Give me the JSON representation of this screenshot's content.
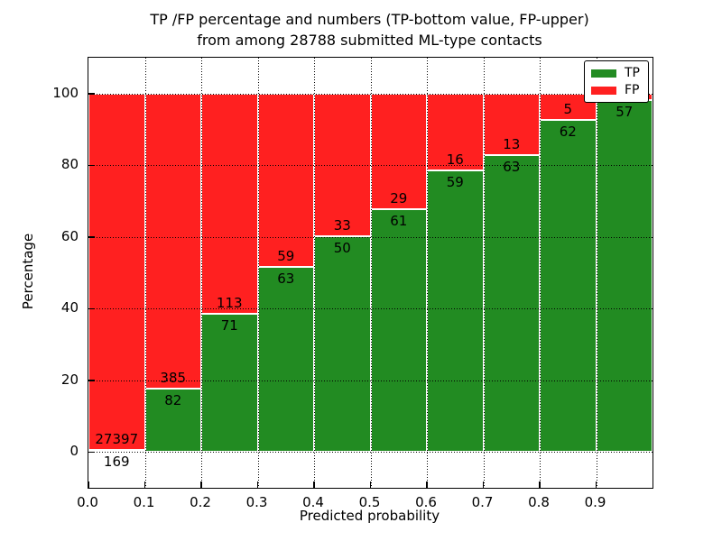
{
  "title": {
    "line1": "TP /FP percentage and numbers (TP-bottom value, FP-upper)",
    "line2": "from among 28788 submitted ML-type contacts"
  },
  "axes": {
    "xlabel": "Predicted probability",
    "ylabel": "Percentage",
    "xtick_labels": [
      "0.0",
      "0.1",
      "0.2",
      "0.3",
      "0.4",
      "0.5",
      "0.6",
      "0.7",
      "0.8",
      "0.9"
    ],
    "ytick_labels": [
      "0",
      "20",
      "40",
      "60",
      "80",
      "100"
    ]
  },
  "legend": {
    "position": "upper-right",
    "items": [
      {
        "label": "TP",
        "color": "#228B22"
      },
      {
        "label": "FP",
        "color": "#FF2020"
      }
    ]
  },
  "colors": {
    "tp": "#228B22",
    "fp": "#FF2020",
    "grid": "#000000",
    "background": "#FFFFFF",
    "text": "#000000"
  },
  "chart_data": {
    "type": "bar",
    "stacked": true,
    "normalized": "each bar totals 100%",
    "title": "TP /FP percentage and numbers (TP-bottom value, FP-upper) from among 28788 submitted ML-type contacts",
    "xlabel": "Predicted probability",
    "ylabel": "Percentage",
    "xlim": [
      0.0,
      1.0
    ],
    "ylim": [
      -10,
      110
    ],
    "yticks": [
      0,
      20,
      40,
      60,
      80,
      100
    ],
    "xticks": [
      0.0,
      0.1,
      0.2,
      0.3,
      0.4,
      0.5,
      0.6,
      0.7,
      0.8,
      0.9
    ],
    "bin_width": 0.1,
    "grid": "dotted",
    "bars": [
      {
        "bin_start": 0.0,
        "tp": 169,
        "fp": 27397,
        "tp_pct": 0.61
      },
      {
        "bin_start": 0.1,
        "tp": 82,
        "fp": 385,
        "tp_pct": 17.56
      },
      {
        "bin_start": 0.2,
        "tp": 71,
        "fp": 113,
        "tp_pct": 38.59
      },
      {
        "bin_start": 0.3,
        "tp": 63,
        "fp": 59,
        "tp_pct": 51.64
      },
      {
        "bin_start": 0.4,
        "tp": 50,
        "fp": 33,
        "tp_pct": 60.24
      },
      {
        "bin_start": 0.5,
        "tp": 61,
        "fp": 29,
        "tp_pct": 67.78
      },
      {
        "bin_start": 0.6,
        "tp": 59,
        "fp": 16,
        "tp_pct": 78.67
      },
      {
        "bin_start": 0.7,
        "tp": 63,
        "fp": 13,
        "tp_pct": 82.89
      },
      {
        "bin_start": 0.8,
        "tp": 62,
        "fp": 5,
        "tp_pct": 92.54
      },
      {
        "bin_start": 0.9,
        "tp": 57,
        "fp": null,
        "tp_pct": 98.3
      }
    ]
  }
}
